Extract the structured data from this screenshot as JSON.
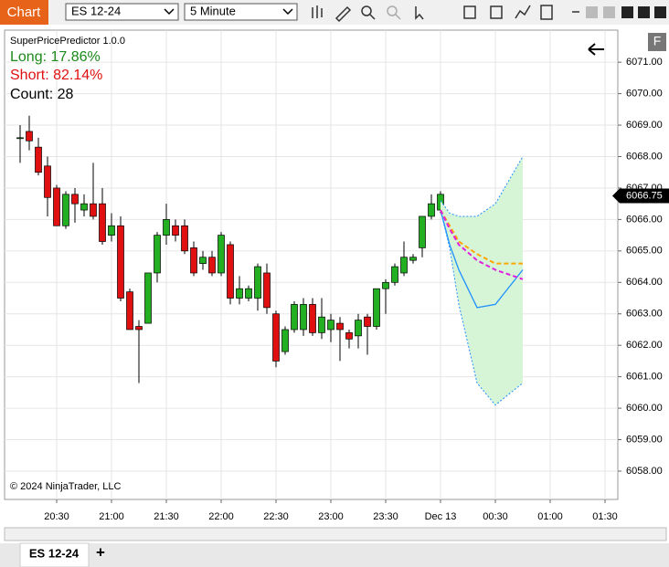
{
  "toolbar": {
    "title": "Chart",
    "instrument": "ES 12-24",
    "interval": "5 Minute"
  },
  "tabs": {
    "active": "ES 12-24",
    "add": "+"
  },
  "indicator": {
    "name": "SuperPricePredictor 1.0.0",
    "long": "Long: 17.86%",
    "short": "Short: 82.14%",
    "count": "Count: 28"
  },
  "copyright": "© 2024 NinjaTrader, LLC",
  "panel_button": "F",
  "chart_data": {
    "type": "candlestick",
    "x": [
      0,
      1,
      2,
      3,
      4,
      5,
      6,
      7,
      8,
      9,
      10,
      11,
      12,
      13,
      14,
      15,
      16,
      17,
      18,
      19,
      20,
      21,
      22,
      23,
      24,
      25,
      26,
      27,
      28,
      29,
      30,
      31,
      32,
      33,
      34,
      35,
      36,
      37,
      38,
      39,
      40,
      41,
      42,
      43,
      44,
      45,
      46
    ],
    "open": [
      6068.6,
      6068.8,
      6068.3,
      6067.7,
      6067.0,
      6065.8,
      6066.8,
      6066.3,
      6066.5,
      6066.5,
      6065.5,
      6065.8,
      6063.7,
      6062.6,
      6062.7,
      6064.3,
      6065.5,
      6065.8,
      6065.8,
      6065.1,
      6064.6,
      6064.8,
      6064.3,
      6065.2,
      6063.5,
      6063.5,
      6063.5,
      6064.3,
      6063.0,
      6061.8,
      6062.5,
      6062.5,
      6063.3,
      6062.4,
      6062.5,
      6062.7,
      6062.4,
      6062.3,
      6062.9,
      6062.6,
      6063.8,
      6064.0,
      6064.3,
      6064.7,
      6065.1,
      6066.1,
      6066.3
    ],
    "high": [
      6069.0,
      6069.3,
      6068.6,
      6068.0,
      6067.1,
      6066.9,
      6067.0,
      6066.8,
      6067.8,
      6067.0,
      6066.2,
      6066.1,
      6063.8,
      6062.8,
      6064.3,
      6065.6,
      6066.5,
      6066.0,
      6066.0,
      6065.3,
      6065.0,
      6065.0,
      6065.6,
      6065.3,
      6064.2,
      6063.9,
      6064.6,
      6064.6,
      6063.1,
      6062.6,
      6063.4,
      6063.5,
      6063.5,
      6063.5,
      6063.0,
      6062.9,
      6062.5,
      6063.0,
      6063.0,
      6063.8,
      6064.1,
      6064.6,
      6065.3,
      6064.9,
      6066.1,
      6066.8,
      6066.9
    ],
    "low": [
      6067.8,
      6068.2,
      6067.4,
      6066.1,
      6065.8,
      6065.7,
      6065.9,
      6066.1,
      6066.0,
      6065.2,
      6065.3,
      6063.4,
      6062.5,
      6060.8,
      6062.7,
      6064.0,
      6065.2,
      6065.3,
      6064.9,
      6064.2,
      6064.4,
      6064.2,
      6064.2,
      6063.3,
      6063.3,
      6063.4,
      6063.1,
      6063.0,
      6061.3,
      6061.7,
      6062.4,
      6062.3,
      6062.3,
      6062.2,
      6062.1,
      6061.5,
      6061.9,
      6061.9,
      6061.7,
      6062.5,
      6063.0,
      6063.9,
      6064.2,
      6064.6,
      6064.8,
      6066.0,
      6066.2
    ],
    "close": [
      6068.6,
      6068.5,
      6067.5,
      6066.7,
      6065.8,
      6066.8,
      6066.5,
      6066.5,
      6066.1,
      6065.3,
      6065.8,
      6063.5,
      6062.5,
      6062.5,
      6064.3,
      6065.5,
      6066.0,
      6065.5,
      6065.0,
      6064.3,
      6064.8,
      6064.3,
      6065.5,
      6063.5,
      6063.8,
      6063.8,
      6064.5,
      6063.2,
      6061.5,
      6062.5,
      6063.3,
      6063.3,
      6062.4,
      6062.9,
      6062.8,
      6062.5,
      6062.2,
      6062.8,
      6062.6,
      6063.8,
      6064.0,
      6064.5,
      6064.8,
      6064.8,
      6066.1,
      6066.5,
      6066.8
    ],
    "up_color": "#22b022",
    "down_color": "#e01010",
    "last_price": 6066.75,
    "forecast": {
      "x": [
        46,
        47,
        48,
        50,
        52,
        55
      ],
      "band_color": "#d6f5d6",
      "series": [
        {
          "color": "#1e90ff",
          "dash": true,
          "values": [
            6066.6,
            6066.2,
            6066.1,
            6066.1,
            6066.5,
            6068.0
          ]
        },
        {
          "color": "#1e90ff",
          "dash": true,
          "values": [
            6066.3,
            6065.1,
            6063.3,
            6060.8,
            6060.1,
            6060.8
          ]
        },
        {
          "color": "#1e90ff",
          "dash": false,
          "values": [
            6066.3,
            6065.2,
            6064.4,
            6063.2,
            6063.3,
            6064.4
          ]
        },
        {
          "color": "#ffa500",
          "dash": true,
          "values": [
            6066.3,
            6065.8,
            6065.3,
            6064.9,
            6064.6,
            6064.6
          ]
        },
        {
          "color": "#e020e0",
          "dash": true,
          "values": [
            6066.3,
            6065.7,
            6065.2,
            6064.7,
            6064.4,
            6064.1
          ]
        }
      ]
    },
    "xlim": [
      -1.7,
      65.4
    ],
    "xticks": [
      {
        "value": 4,
        "label": "20:30"
      },
      {
        "value": 10,
        "label": "21:00"
      },
      {
        "value": 16,
        "label": "21:30"
      },
      {
        "value": 22,
        "label": "22:00"
      },
      {
        "value": 28,
        "label": "22:30"
      },
      {
        "value": 34,
        "label": "23:00"
      },
      {
        "value": 40,
        "label": "23:30"
      },
      {
        "value": 46,
        "label": "Dec 13"
      },
      {
        "value": 52,
        "label": "00:30"
      },
      {
        "value": 58,
        "label": "01:00"
      },
      {
        "value": 64,
        "label": "01:30"
      }
    ],
    "ylim": [
      6057.1,
      6072.02
    ],
    "yticks": [
      {
        "value": 6058,
        "label": "6058.00"
      },
      {
        "value": 6059,
        "label": "6059.00"
      },
      {
        "value": 6060,
        "label": "6060.00"
      },
      {
        "value": 6061,
        "label": "6061.00"
      },
      {
        "value": 6062,
        "label": "6062.00"
      },
      {
        "value": 6063,
        "label": "6063.00"
      },
      {
        "value": 6064,
        "label": "6064.00"
      },
      {
        "value": 6065,
        "label": "6065.00"
      },
      {
        "value": 6066,
        "label": "6066.00"
      },
      {
        "value": 6067,
        "label": "6067.00"
      },
      {
        "value": 6068,
        "label": "6068.00"
      },
      {
        "value": 6069,
        "label": "6069.00"
      },
      {
        "value": 6070,
        "label": "6070.00"
      },
      {
        "value": 6071,
        "label": "6071.00"
      }
    ],
    "grid": true
  }
}
